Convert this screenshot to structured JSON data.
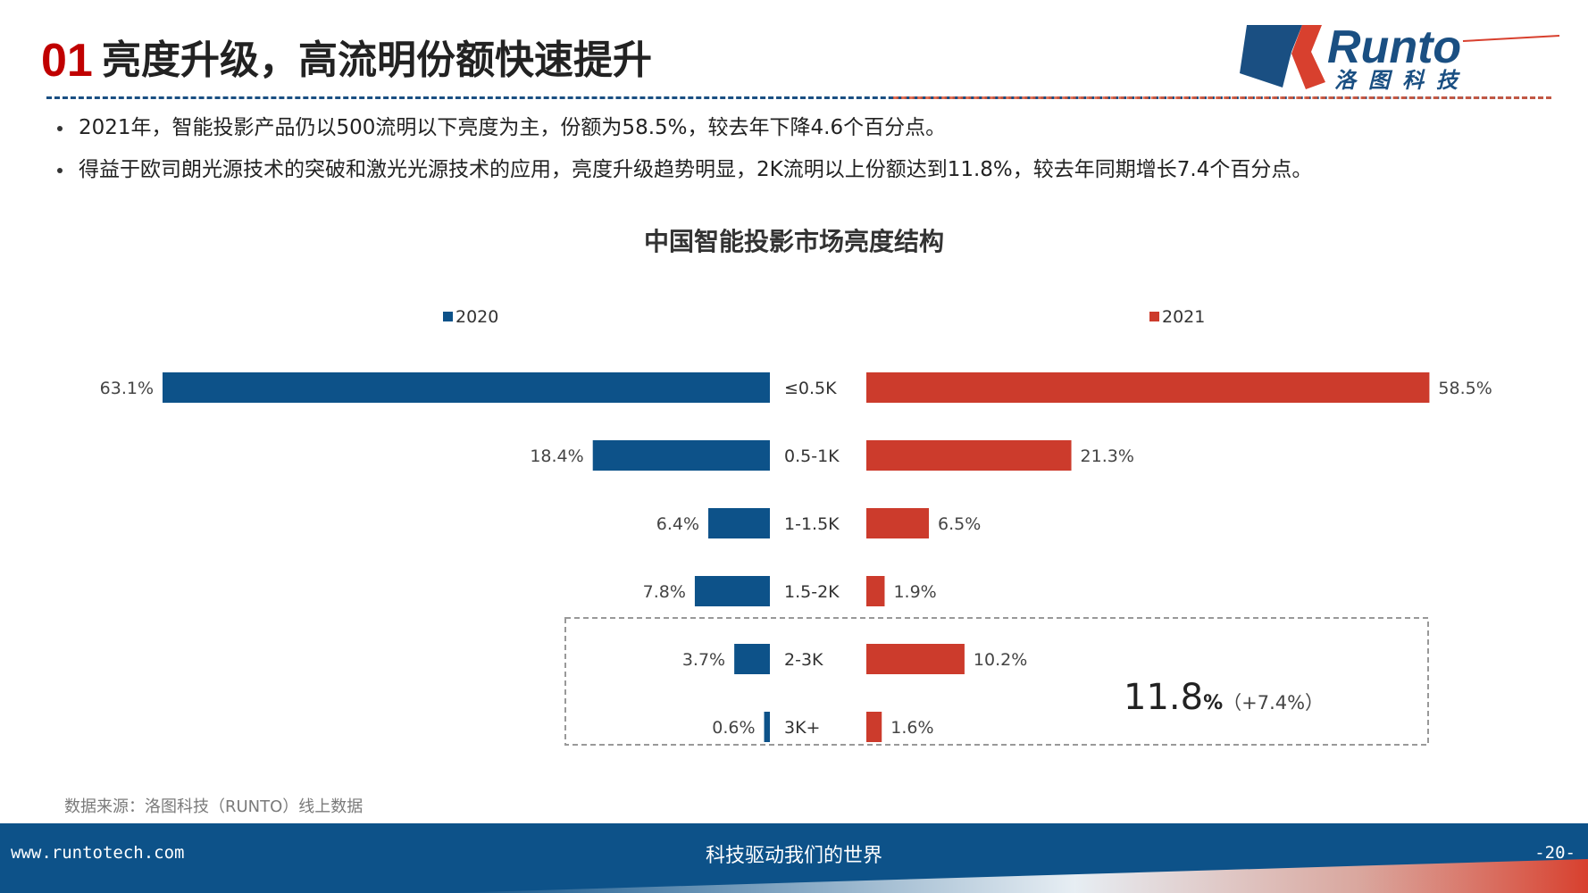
{
  "header": {
    "section_number": "01",
    "title": "亮度升级，高流明份额快速提升",
    "logo_text": "Runto",
    "logo_subtext": "洛图科技"
  },
  "bullets": [
    "2021年，智能投影产品仍以500流明以下亮度为主，份额为58.5%，较去年下降4.6个百分点。",
    "得益于欧司朗光源技术的突破和激光光源技术的应用，亮度升级趋势明显，2K流明以上份额达到11.8%，较去年同期增长7.4个百分点。"
  ],
  "chart_data": {
    "type": "bar",
    "title": "中国智能投影市场亮度结构",
    "categories": [
      "≤0.5K",
      "0.5-1K",
      "1-1.5K",
      "1.5-2K",
      "2-3K",
      "3K+"
    ],
    "series": [
      {
        "name": "2020",
        "values": [
          63.1,
          18.4,
          6.4,
          7.8,
          3.7,
          0.6
        ],
        "labels": [
          "63.1%",
          "18.4%",
          "6.4%",
          "7.8%",
          "3.7%",
          "0.6%"
        ],
        "color": "#0d5289",
        "direction": "left"
      },
      {
        "name": "2021",
        "values": [
          58.5,
          21.3,
          6.5,
          1.9,
          10.2,
          1.6
        ],
        "labels": [
          "58.5%",
          "21.3%",
          "6.5%",
          "1.9%",
          "10.2%",
          "1.6%"
        ],
        "color": "#cc3b2c",
        "direction": "right"
      }
    ],
    "highlight": {
      "categories": [
        "2-3K",
        "3K+"
      ],
      "value": "11.8",
      "unit": "%",
      "delta": "（+7.4%）"
    },
    "legend": "top",
    "grid": false
  },
  "source": "数据来源：洛图科技（RUNTO）线上数据",
  "footer": {
    "url": "www.runtotech.com",
    "slogan": "科技驱动我们的世界",
    "page": "-20-"
  },
  "colors": {
    "accent_red": "#c00000",
    "brand_blue": "#0d5289",
    "bar_red": "#cc3b2c"
  }
}
